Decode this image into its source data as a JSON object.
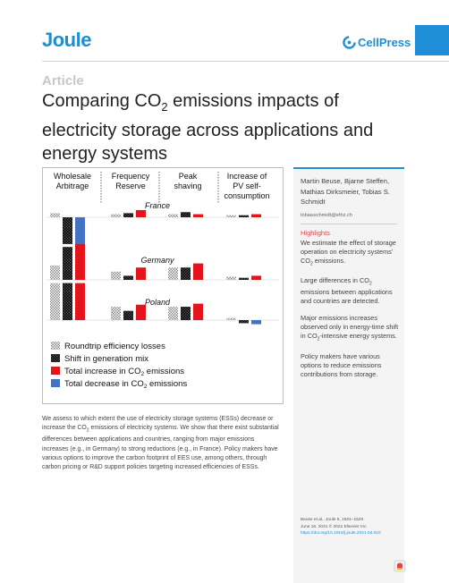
{
  "journal": {
    "name": "Joule"
  },
  "publisher": {
    "name": "CellPress"
  },
  "article": {
    "type": "Article",
    "title_pre": "Comparing CO",
    "title_sub": "2",
    "title_post": " emissions impacts of electricity storage across applications and energy systems"
  },
  "figure": {
    "columns": [
      {
        "line1": "Wholesale",
        "line2": "Arbitrage",
        "line3": ""
      },
      {
        "line1": "Frequency",
        "line2": "Reserve",
        "line3": ""
      },
      {
        "line1": "Peak",
        "line2": "shaving",
        "line3": ""
      },
      {
        "line1": "Increase of",
        "line2": "PV self-",
        "line3": "consumption"
      }
    ],
    "panels": [
      {
        "name": "France",
        "groups": [
          {
            "roundtrip": 0.4,
            "shift": -2.6,
            "increase": 0,
            "decrease": -2.6
          },
          {
            "roundtrip": 0.3,
            "shift": 0.4,
            "increase": 0.7,
            "decrease": 0
          },
          {
            "roundtrip": 0.3,
            "shift": 0.5,
            "increase": 0.3,
            "decrease": 0
          },
          {
            "roundtrip": 0.2,
            "shift": 0.2,
            "increase": 0.3,
            "decrease": 0
          }
        ]
      },
      {
        "name": "Germany",
        "groups": [
          {
            "roundtrip": 1.4,
            "shift": 3.2,
            "increase": 3.5,
            "decrease": 0
          },
          {
            "roundtrip": 0.8,
            "shift": 0.4,
            "increase": 1.2,
            "decrease": 0
          },
          {
            "roundtrip": 1.2,
            "shift": 1.2,
            "increase": 1.6,
            "decrease": 0
          },
          {
            "roundtrip": 0.3,
            "shift": 0.2,
            "increase": 0.4,
            "decrease": 0
          }
        ]
      },
      {
        "name": "Poland",
        "groups": [
          {
            "roundtrip": 3.6,
            "shift": 3.6,
            "increase": 3.6,
            "decrease": 0
          },
          {
            "roundtrip": 1.3,
            "shift": 0.9,
            "increase": 1.5,
            "decrease": 0
          },
          {
            "roundtrip": 1.3,
            "shift": 1.3,
            "increase": 1.6,
            "decrease": 0
          },
          {
            "roundtrip": 0.2,
            "shift": -0.3,
            "increase": 0,
            "decrease": -0.4
          }
        ]
      }
    ],
    "legend": [
      {
        "key": "roundtrip",
        "label": "Roundtrip efficiency losses",
        "sub": "",
        "post": ""
      },
      {
        "key": "shift",
        "label": "Shift in generation mix",
        "sub": "",
        "post": ""
      },
      {
        "key": "increase",
        "label": "Total increase in CO",
        "sub": "2",
        "post": " emissions"
      },
      {
        "key": "decrease",
        "label": "Total decrease in CO",
        "sub": "2",
        "post": " emissions"
      }
    ],
    "colors": {
      "roundtrip": "#9a9a9a",
      "shift": "#1a1a1a",
      "increase": "#e3141c",
      "decrease": "#4472c4"
    }
  },
  "sidebar": {
    "authors": "Martin Beuse, Bjarne Steffen, Mathias Dirksmeier, Tobias S. Schmidt",
    "email": "tobiasschmidt@ethz.ch",
    "highlights_heading": "Highlights",
    "highlights": [
      {
        "pre": "We estimate the effect of storage operation on electricity systems' CO",
        "sub": "2",
        "post": " emissions."
      },
      {
        "pre": "Large differences in CO",
        "sub": "2",
        "post": " emissions between applications and countries are detected."
      },
      {
        "pre": "Major emissions increases observed only in energy-time shift in CO",
        "sub": "2",
        "post": "-intensive energy systems."
      },
      {
        "pre": "Policy makers have various options to reduce emissions contributions from storage.",
        "sub": "",
        "post": ""
      }
    ],
    "citation_line1": "Beuse et al., Joule 5, 1501–1520",
    "citation_line2": "June 16, 2021 © 2021 Elsevier Inc.",
    "doi": "https://doi.org/10.1016/j.joule.2021.04.010"
  },
  "summary": {
    "part1": "We assess to which extent the use of electricity storage systems (ESSs) decrease or increase the CO",
    "sub": "2",
    "part2": " emissions of electricity systems. We show that there exist substantial differences between applications and countries, ranging from major emissions increases (e.g., in Germany) to strong reductions (e.g., in France). Policy makers have various options to improve the carbon footprint of EES use, among others, through carbon pricing or R&D support policies targeting increased efficiencies of ESSs."
  }
}
